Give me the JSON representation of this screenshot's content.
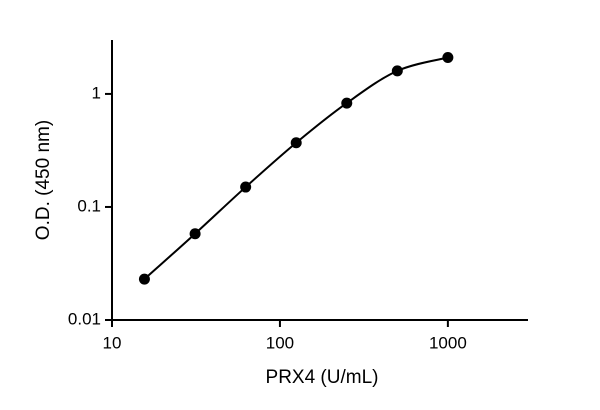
{
  "chart_data": {
    "type": "scatter",
    "xlabel": "PRX4 (U/mL)",
    "ylabel": "O.D. (450 nm)",
    "x": [
      15.6,
      31.25,
      62.5,
      125,
      250,
      500,
      1000
    ],
    "series": [
      {
        "values": [
          0.023,
          0.058,
          0.15,
          0.37,
          0.83,
          1.6,
          2.1
        ],
        "color": "#000000"
      }
    ],
    "xlim": [
      10,
      3000
    ],
    "ylim": [
      0.01,
      3
    ],
    "xticks": [
      10,
      100,
      1000
    ],
    "yticks": [
      0.01,
      0.1,
      1
    ],
    "xscale": "log",
    "yscale": "log",
    "fit_curve": true
  }
}
